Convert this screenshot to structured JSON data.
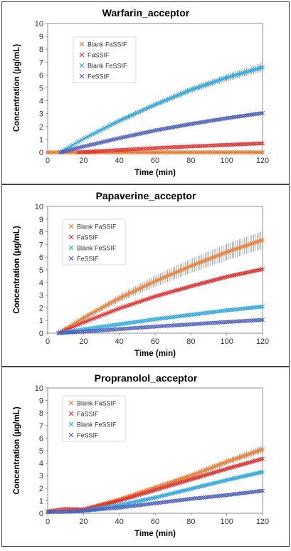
{
  "chart_data": [
    {
      "type": "scatter",
      "title": "Warfarin_acceptor",
      "xlabel": "Time (min)",
      "ylabel": "Concentration (μg/mL)",
      "xlim": [
        0,
        120
      ],
      "ylim": [
        0,
        10
      ],
      "x_ticks": [
        "0",
        "20",
        "40",
        "60",
        "80",
        "100",
        "120"
      ],
      "y_ticks": [
        "0",
        "1",
        "2",
        "3",
        "4",
        "5",
        "6",
        "7",
        "8",
        "9",
        "10"
      ],
      "grid": false,
      "legend_position": "top-left",
      "series": [
        {
          "name": "Blank FaSSIF",
          "color": "#ED7D31",
          "x": [
            0,
            120
          ],
          "y": [
            0,
            0
          ],
          "error": [
            0,
            0
          ]
        },
        {
          "name": "FaSSIF",
          "color": "#E03030",
          "x": [
            17,
            40,
            60,
            80,
            100,
            120
          ],
          "y": [
            0.0,
            0.18,
            0.33,
            0.46,
            0.58,
            0.7
          ],
          "error": [
            0.02,
            0.04,
            0.05,
            0.06,
            0.07,
            0.08
          ]
        },
        {
          "name": "Blank FeSSIF",
          "color": "#2CA7DF",
          "x": [
            7,
            20,
            40,
            60,
            80,
            100,
            120
          ],
          "y": [
            0.0,
            1.05,
            2.45,
            3.7,
            4.85,
            5.8,
            6.6
          ],
          "error": [
            0.02,
            0.08,
            0.15,
            0.2,
            0.26,
            0.3,
            0.35
          ]
        },
        {
          "name": "FeSSIF",
          "color": "#4A5DB8",
          "x": [
            7,
            20,
            40,
            60,
            80,
            100,
            120
          ],
          "y": [
            0.0,
            0.45,
            1.1,
            1.7,
            2.2,
            2.65,
            3.05
          ],
          "error": [
            0.01,
            0.03,
            0.05,
            0.06,
            0.07,
            0.08,
            0.09
          ]
        }
      ]
    },
    {
      "type": "scatter",
      "title": "Papaverine_acceptor",
      "xlabel": "Time (min)",
      "ylabel": "Concentration (μg/mL)",
      "xlim": [
        0,
        120
      ],
      "ylim": [
        0,
        10
      ],
      "x_ticks": [
        "0",
        "20",
        "40",
        "60",
        "80",
        "100",
        "120"
      ],
      "y_ticks": [
        "0",
        "1",
        "2",
        "3",
        "4",
        "5",
        "6",
        "7",
        "8",
        "9",
        "10"
      ],
      "grid": false,
      "legend_position": "top-left",
      "series": [
        {
          "name": "Blank FaSSIF",
          "color": "#ED7D31",
          "x": [
            6,
            20,
            40,
            60,
            80,
            100,
            120
          ],
          "y": [
            0.0,
            1.2,
            2.75,
            4.1,
            5.3,
            6.4,
            7.35
          ],
          "error": [
            0.02,
            0.15,
            0.3,
            0.45,
            0.55,
            0.65,
            0.7
          ]
        },
        {
          "name": "FaSSIF",
          "color": "#E03030",
          "x": [
            6,
            20,
            40,
            60,
            80,
            100,
            120
          ],
          "y": [
            0.0,
            0.85,
            1.95,
            2.9,
            3.7,
            4.45,
            5.05
          ],
          "error": [
            0.01,
            0.06,
            0.1,
            0.12,
            0.14,
            0.15,
            0.16
          ]
        },
        {
          "name": "Blank FeSSIF",
          "color": "#2CA7DF",
          "x": [
            6,
            20,
            40,
            60,
            80,
            100,
            120
          ],
          "y": [
            0.0,
            0.3,
            0.7,
            1.1,
            1.45,
            1.8,
            2.1
          ],
          "error": [
            0.01,
            0.03,
            0.04,
            0.05,
            0.06,
            0.06,
            0.07
          ]
        },
        {
          "name": "FeSSIF",
          "color": "#4A5DB8",
          "x": [
            6,
            20,
            40,
            60,
            80,
            100,
            120
          ],
          "y": [
            0.0,
            0.12,
            0.32,
            0.52,
            0.7,
            0.88,
            1.05
          ],
          "error": [
            0.01,
            0.02,
            0.03,
            0.03,
            0.04,
            0.04,
            0.05
          ]
        }
      ]
    },
    {
      "type": "scatter",
      "title": "Propranolol_acceptor",
      "xlabel": "Time (min)",
      "ylabel": "Concentration (μg/mL)",
      "xlim": [
        0,
        120
      ],
      "ylim": [
        0,
        10
      ],
      "x_ticks": [
        "0",
        "20",
        "40",
        "60",
        "80",
        "100",
        "120"
      ],
      "y_ticks": [
        "0",
        "1",
        "2",
        "3",
        "4",
        "5",
        "6",
        "7",
        "8",
        "9",
        "10"
      ],
      "grid": false,
      "legend_position": "top-left",
      "series": [
        {
          "name": "Blank FaSSIF",
          "color": "#ED7D31",
          "x": [
            0,
            10,
            20,
            40,
            60,
            80,
            100,
            120
          ],
          "y": [
            0.1,
            0.15,
            0.3,
            1.1,
            2.05,
            3.0,
            4.1,
            5.1
          ],
          "error": [
            0.02,
            0.03,
            0.05,
            0.12,
            0.18,
            0.22,
            0.26,
            0.3
          ]
        },
        {
          "name": "FaSSIF",
          "color": "#E03030",
          "x": [
            0,
            10,
            20,
            40,
            60,
            80,
            100,
            120
          ],
          "y": [
            0.15,
            0.35,
            0.3,
            1.0,
            1.85,
            2.7,
            3.55,
            4.35
          ],
          "error": [
            0.03,
            0.05,
            0.05,
            0.1,
            0.12,
            0.14,
            0.15,
            0.16
          ]
        },
        {
          "name": "Blank FeSSIF",
          "color": "#2CA7DF",
          "x": [
            0,
            10,
            20,
            40,
            60,
            80,
            100,
            120
          ],
          "y": [
            0.1,
            0.12,
            0.2,
            0.65,
            1.25,
            1.95,
            2.65,
            3.3
          ],
          "error": [
            0.02,
            0.02,
            0.03,
            0.06,
            0.08,
            0.1,
            0.12,
            0.14
          ]
        },
        {
          "name": "FeSSIF",
          "color": "#4A5DB8",
          "x": [
            0,
            10,
            20,
            40,
            60,
            80,
            100,
            120
          ],
          "y": [
            0.1,
            0.12,
            0.2,
            0.45,
            0.8,
            1.15,
            1.45,
            1.8
          ],
          "error": [
            0.01,
            0.02,
            0.02,
            0.04,
            0.05,
            0.06,
            0.06,
            0.07
          ]
        }
      ]
    }
  ]
}
